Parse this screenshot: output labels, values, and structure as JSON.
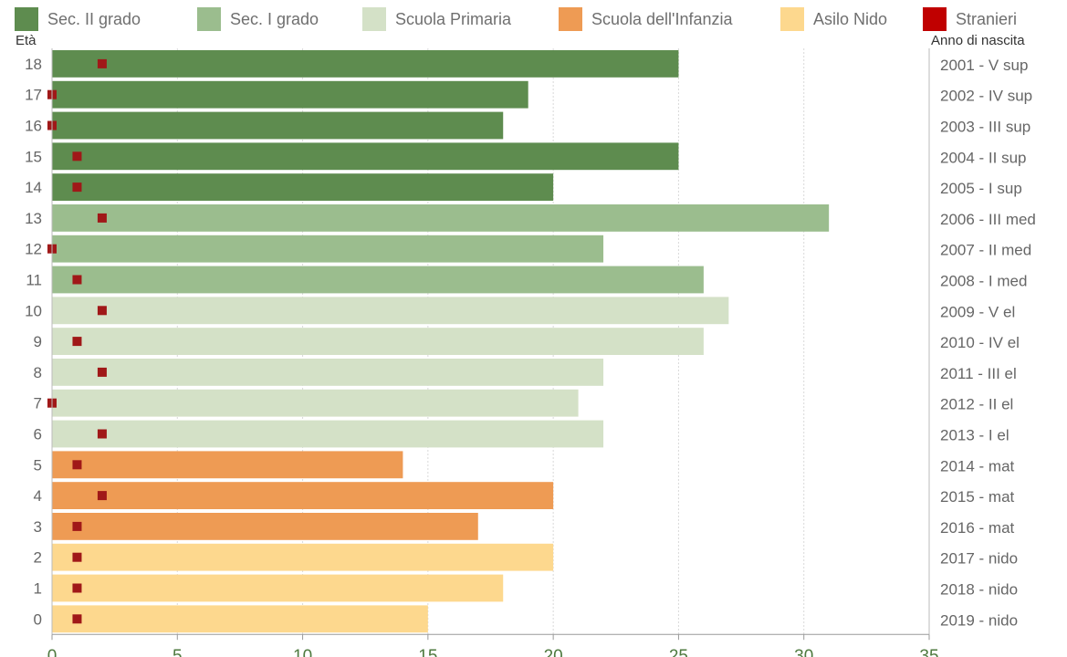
{
  "chart_data": {
    "type": "bar",
    "orientation": "horizontal",
    "left_axis_title": "Età",
    "right_axis_title": "Anno di nascita",
    "xlim": [
      0,
      35
    ],
    "x_ticks": [
      "0",
      "5",
      "10",
      "15",
      "20",
      "25",
      "30",
      "35"
    ],
    "grid": "vertical",
    "legend_position": "top",
    "legend": [
      {
        "label": "Sec. II grado",
        "color": "#5e8c4f"
      },
      {
        "label": "Sec. I grado",
        "color": "#9bbd8e"
      },
      {
        "label": "Scuola Primaria",
        "color": "#d4e1c7"
      },
      {
        "label": "Scuola dell'Infanzia",
        "color": "#ee9b54"
      },
      {
        "label": "Asilo Nido",
        "color": "#fdd88e"
      },
      {
        "label": "Stranieri",
        "color": "#c00000"
      }
    ],
    "marker_color": "#a01818",
    "rows": [
      {
        "age": "18",
        "year_label": "2001 - V sup",
        "group": 0,
        "value": 25,
        "stranieri": 2
      },
      {
        "age": "17",
        "year_label": "2002 - IV sup",
        "group": 0,
        "value": 19,
        "stranieri": 0
      },
      {
        "age": "16",
        "year_label": "2003 - III sup",
        "group": 0,
        "value": 18,
        "stranieri": 0
      },
      {
        "age": "15",
        "year_label": "2004 - II sup",
        "group": 0,
        "value": 25,
        "stranieri": 1
      },
      {
        "age": "14",
        "year_label": "2005 - I sup",
        "group": 0,
        "value": 20,
        "stranieri": 1
      },
      {
        "age": "13",
        "year_label": "2006 - III med",
        "group": 1,
        "value": 31,
        "stranieri": 2
      },
      {
        "age": "12",
        "year_label": "2007 - II med",
        "group": 1,
        "value": 22,
        "stranieri": 0
      },
      {
        "age": "11",
        "year_label": "2008 - I med",
        "group": 1,
        "value": 26,
        "stranieri": 1
      },
      {
        "age": "10",
        "year_label": "2009 - V el",
        "group": 2,
        "value": 27,
        "stranieri": 2
      },
      {
        "age": "9",
        "year_label": "2010 - IV el",
        "group": 2,
        "value": 26,
        "stranieri": 1
      },
      {
        "age": "8",
        "year_label": "2011 - III el",
        "group": 2,
        "value": 22,
        "stranieri": 2
      },
      {
        "age": "7",
        "year_label": "2012 - II el",
        "group": 2,
        "value": 21,
        "stranieri": 0
      },
      {
        "age": "6",
        "year_label": "2013 - I el",
        "group": 2,
        "value": 22,
        "stranieri": 2
      },
      {
        "age": "5",
        "year_label": "2014 - mat",
        "group": 3,
        "value": 14,
        "stranieri": 1
      },
      {
        "age": "4",
        "year_label": "2015 - mat",
        "group": 3,
        "value": 20,
        "stranieri": 2
      },
      {
        "age": "3",
        "year_label": "2016 - mat",
        "group": 3,
        "value": 17,
        "stranieri": 1
      },
      {
        "age": "2",
        "year_label": "2017 - nido",
        "group": 4,
        "value": 20,
        "stranieri": 1
      },
      {
        "age": "1",
        "year_label": "2018 - nido",
        "group": 4,
        "value": 18,
        "stranieri": 1
      },
      {
        "age": "0",
        "year_label": "2019 - nido",
        "group": 4,
        "value": 15,
        "stranieri": 1
      }
    ]
  }
}
